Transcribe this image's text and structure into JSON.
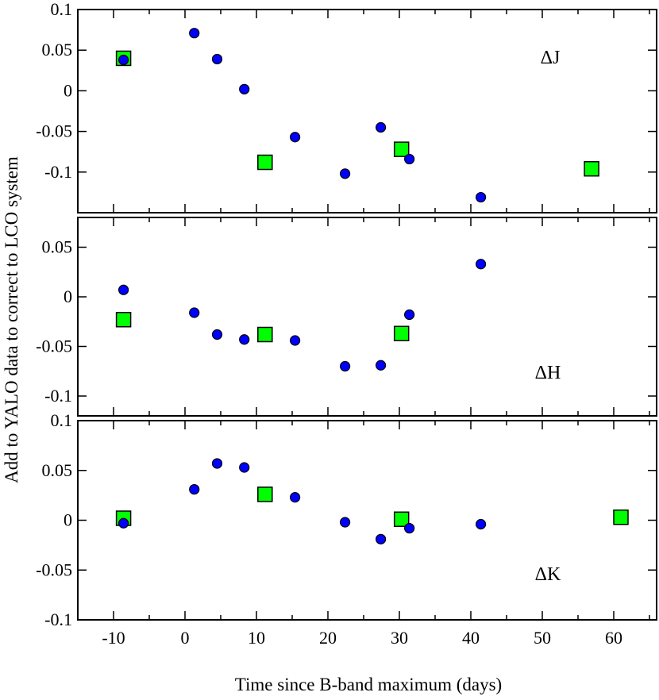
{
  "chart_data": {
    "type": "scatter",
    "xlabel": "Time since B-band maximum (days)",
    "ylabel": "Add to YALO data to correct to LCO system",
    "xlim": [
      -15,
      66
    ],
    "xticks": [
      -10,
      0,
      10,
      20,
      30,
      40,
      50,
      60
    ],
    "xtick_labels": [
      "-10",
      "0",
      "10",
      "20",
      "30",
      "40",
      "50",
      "60"
    ],
    "grid": false,
    "colors": {
      "circle": "#0000ff",
      "square": "#00ff00",
      "edge": "#000000"
    },
    "panels": [
      {
        "label": "ΔJ",
        "ylim": [
          -0.15,
          0.1
        ],
        "yticks": [
          0.1,
          0.05,
          0,
          -0.05,
          -0.1
        ],
        "ytick_labels": [
          "0.1",
          "0.05",
          "0",
          "-0.05",
          "-0.1"
        ],
        "series": [
          {
            "marker": "circle",
            "x": [
              -8.6,
              1.3,
              4.5,
              8.3,
              15.4,
              22.4,
              27.4,
              31.4,
              41.4
            ],
            "y": [
              0.038,
              0.071,
              0.039,
              0.002,
              -0.057,
              -0.102,
              -0.045,
              -0.084,
              -0.131
            ]
          },
          {
            "marker": "square",
            "x": [
              -8.6,
              11.2,
              30.3,
              56.9
            ],
            "y": [
              0.04,
              -0.088,
              -0.072,
              -0.096
            ]
          }
        ]
      },
      {
        "label": "ΔH",
        "ylim": [
          -0.12,
          0.08
        ],
        "yticks": [
          0.05,
          0,
          -0.05,
          -0.1
        ],
        "ytick_labels": [
          "0.05",
          "0",
          "-0.05",
          "-0.1"
        ],
        "series": [
          {
            "marker": "circle",
            "x": [
              -8.6,
              1.3,
              4.5,
              8.3,
              15.4,
              22.4,
              27.4,
              31.4,
              41.4
            ],
            "y": [
              0.007,
              -0.016,
              -0.038,
              -0.043,
              -0.044,
              -0.07,
              -0.069,
              -0.018,
              0.033
            ]
          },
          {
            "marker": "square",
            "x": [
              -8.6,
              11.2,
              30.3
            ],
            "y": [
              -0.023,
              -0.038,
              -0.037
            ]
          }
        ]
      },
      {
        "label": "ΔK",
        "ylim": [
          -0.1,
          0.1
        ],
        "yticks": [
          0.1,
          0.05,
          0,
          -0.05,
          -0.1
        ],
        "ytick_labels": [
          "0.1",
          "0.05",
          "0",
          "-0.05",
          "-0.1"
        ],
        "series": [
          {
            "marker": "circle",
            "x": [
              -8.6,
              1.3,
              4.5,
              8.3,
              15.4,
              22.4,
              27.4,
              31.4,
              41.4
            ],
            "y": [
              -0.003,
              0.031,
              0.057,
              0.053,
              0.023,
              -0.002,
              -0.019,
              -0.008,
              -0.004
            ]
          },
          {
            "marker": "square",
            "x": [
              -8.6,
              11.2,
              30.3,
              61.0
            ],
            "y": [
              0.002,
              0.026,
              0.001,
              0.003
            ]
          }
        ]
      }
    ]
  }
}
